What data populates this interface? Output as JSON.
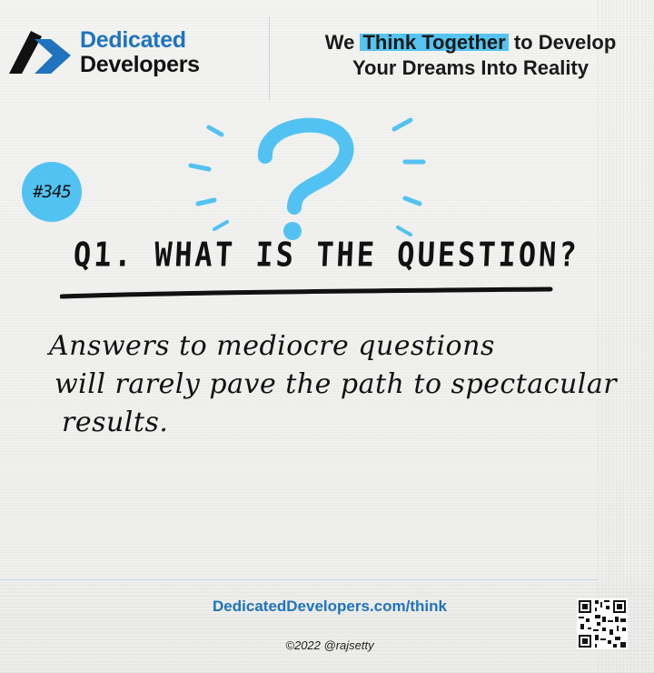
{
  "brand": {
    "name_line1": "Dedicated",
    "name_line2": "Developers"
  },
  "tagline": {
    "pre": "We ",
    "highlight": "Think Together",
    "post": " to Develop",
    "line2": "Your Dreams Into Reality"
  },
  "badge": {
    "number": "#345"
  },
  "question": {
    "title": "Q1. WHAT IS THE QUESTION?"
  },
  "answer": {
    "line1": "Answers to mediocre questions",
    "line2": "will rarely pave the path to spectacular",
    "line3": "results."
  },
  "footer": {
    "link": "DedicatedDevelopers.com/think",
    "copyright": "©2022 @rajsetty"
  },
  "colors": {
    "accent_blue": "#52c2f2",
    "brand_blue": "#1f73bf"
  },
  "icons": {
    "logo": "dedicated-developers-logo-icon",
    "question": "question-mark-icon",
    "qr": "qr-code-icon"
  }
}
